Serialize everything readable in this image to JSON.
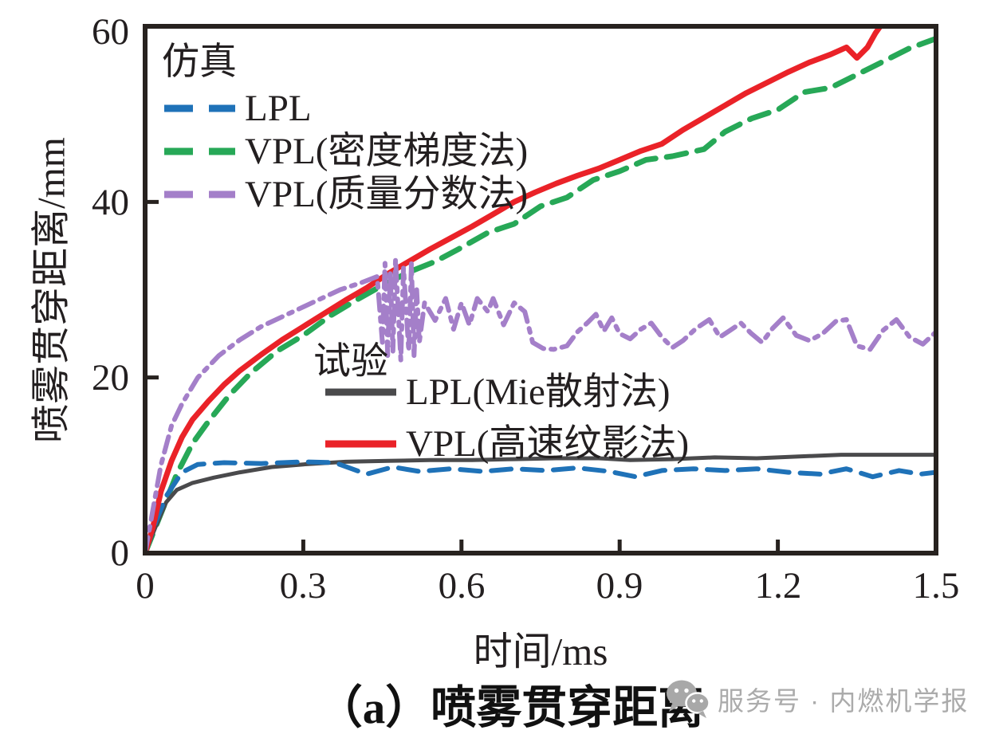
{
  "chart_data": {
    "type": "line",
    "xlabel": "时间/ms",
    "ylabel": "喷雾贯穿距离/mm",
    "xlim": [
      0,
      1.5
    ],
    "ylim": [
      0,
      60
    ],
    "grid": false,
    "x_ticks": [
      "0",
      "0.3",
      "0.6",
      "0.9",
      "1.2",
      "1.5"
    ],
    "y_ticks": [
      "0",
      "20",
      "40",
      "60"
    ],
    "legend": {
      "sim_title": "仿真",
      "exp_title": "试验",
      "sim_position": "top-left-inside",
      "exp_position": "center-inside"
    },
    "frame_color": "#27221f",
    "series": [
      {
        "key": "sim-lpl",
        "name": "LPL",
        "group": "仿真",
        "color": "#1f72b8",
        "line_style": "dashed",
        "points": [
          [
            0,
            0
          ],
          [
            0.02,
            3.5
          ],
          [
            0.04,
            6.5
          ],
          [
            0.07,
            9.2
          ],
          [
            0.1,
            10.1
          ],
          [
            0.15,
            10.3
          ],
          [
            0.22,
            10.2
          ],
          [
            0.3,
            10.4
          ],
          [
            0.36,
            10.3
          ],
          [
            0.42,
            9.0
          ],
          [
            0.47,
            9.8
          ],
          [
            0.52,
            9.3
          ],
          [
            0.58,
            9.6
          ],
          [
            0.64,
            9.3
          ],
          [
            0.7,
            9.6
          ],
          [
            0.76,
            9.4
          ],
          [
            0.82,
            9.7
          ],
          [
            0.88,
            9.3
          ],
          [
            0.93,
            8.7
          ],
          [
            0.98,
            9.4
          ],
          [
            1.04,
            9.6
          ],
          [
            1.1,
            9.4
          ],
          [
            1.16,
            9.6
          ],
          [
            1.22,
            9.2
          ],
          [
            1.28,
            9.0
          ],
          [
            1.33,
            9.6
          ],
          [
            1.38,
            8.7
          ],
          [
            1.43,
            9.4
          ],
          [
            1.47,
            9.0
          ],
          [
            1.5,
            9.2
          ]
        ]
      },
      {
        "key": "sim-vpl-density",
        "name": "VPL(密度梯度法)",
        "group": "仿真",
        "color": "#27a857",
        "line_style": "dashed",
        "points": [
          [
            0,
            0
          ],
          [
            0.03,
            4.5
          ],
          [
            0.06,
            9.0
          ],
          [
            0.09,
            12.5
          ],
          [
            0.12,
            15.0
          ],
          [
            0.16,
            18.0
          ],
          [
            0.2,
            20.5
          ],
          [
            0.25,
            23.0
          ],
          [
            0.3,
            24.8
          ],
          [
            0.35,
            27.0
          ],
          [
            0.4,
            28.8
          ],
          [
            0.45,
            30.5
          ],
          [
            0.5,
            32.0
          ],
          [
            0.55,
            33.2
          ],
          [
            0.6,
            34.8
          ],
          [
            0.65,
            36.5
          ],
          [
            0.7,
            37.5
          ],
          [
            0.75,
            39.5
          ],
          [
            0.8,
            40.5
          ],
          [
            0.85,
            42.5
          ],
          [
            0.9,
            43.5
          ],
          [
            0.95,
            44.8
          ],
          [
            1.0,
            45.2
          ],
          [
            1.06,
            46.0
          ],
          [
            1.1,
            48.0
          ],
          [
            1.15,
            49.5
          ],
          [
            1.2,
            50.5
          ],
          [
            1.25,
            52.5
          ],
          [
            1.3,
            53.0
          ],
          [
            1.35,
            54.5
          ],
          [
            1.4,
            56.0
          ],
          [
            1.45,
            57.5
          ],
          [
            1.5,
            58.6
          ]
        ]
      },
      {
        "key": "sim-vpl-mass",
        "name": "VPL(质量分数法)",
        "group": "仿真",
        "color": "#a47fc9",
        "line_style": "dash-dot",
        "points": [
          [
            0,
            0
          ],
          [
            0.015,
            5
          ],
          [
            0.03,
            10
          ],
          [
            0.05,
            14.5
          ],
          [
            0.07,
            17
          ],
          [
            0.1,
            20
          ],
          [
            0.14,
            22.5
          ],
          [
            0.18,
            24.3
          ],
          [
            0.22,
            25.8
          ],
          [
            0.27,
            27.2
          ],
          [
            0.32,
            28.6
          ],
          [
            0.37,
            30.0
          ],
          [
            0.41,
            30.8
          ],
          [
            0.44,
            31.5
          ],
          [
            0.45,
            24
          ],
          [
            0.455,
            33
          ],
          [
            0.46,
            22.5
          ],
          [
            0.465,
            32
          ],
          [
            0.47,
            23
          ],
          [
            0.475,
            33.5
          ],
          [
            0.485,
            22
          ],
          [
            0.49,
            32.5
          ],
          [
            0.5,
            23
          ],
          [
            0.505,
            33
          ],
          [
            0.51,
            22.5
          ],
          [
            0.515,
            30
          ],
          [
            0.52,
            24
          ],
          [
            0.53,
            28.5
          ],
          [
            0.55,
            26.5
          ],
          [
            0.57,
            29
          ],
          [
            0.585,
            25.5
          ],
          [
            0.6,
            28.5
          ],
          [
            0.615,
            26
          ],
          [
            0.63,
            29
          ],
          [
            0.65,
            27.5
          ],
          [
            0.66,
            29
          ],
          [
            0.68,
            26
          ],
          [
            0.7,
            28.5
          ],
          [
            0.72,
            27.5
          ],
          [
            0.735,
            24
          ],
          [
            0.755,
            23.3
          ],
          [
            0.775,
            23.2
          ],
          [
            0.8,
            23.6
          ],
          [
            0.82,
            25.2
          ],
          [
            0.84,
            26.3
          ],
          [
            0.855,
            27.2
          ],
          [
            0.87,
            25.3
          ],
          [
            0.885,
            26.8
          ],
          [
            0.9,
            25.0
          ],
          [
            0.92,
            24.4
          ],
          [
            0.94,
            25.5
          ],
          [
            0.96,
            26.2
          ],
          [
            0.98,
            24.6
          ],
          [
            1.0,
            23.4
          ],
          [
            1.02,
            24.2
          ],
          [
            1.045,
            25.6
          ],
          [
            1.07,
            26.6
          ],
          [
            1.09,
            24.6
          ],
          [
            1.11,
            25.4
          ],
          [
            1.13,
            26.2
          ],
          [
            1.15,
            25.0
          ],
          [
            1.17,
            24.0
          ],
          [
            1.19,
            25.6
          ],
          [
            1.21,
            26.8
          ],
          [
            1.235,
            24.8
          ],
          [
            1.26,
            24.2
          ],
          [
            1.285,
            25.0
          ],
          [
            1.31,
            26.4
          ],
          [
            1.33,
            26.6
          ],
          [
            1.35,
            23.6
          ],
          [
            1.375,
            23.2
          ],
          [
            1.4,
            25.4
          ],
          [
            1.425,
            26.6
          ],
          [
            1.45,
            24.6
          ],
          [
            1.475,
            23.8
          ],
          [
            1.5,
            25.2
          ]
        ]
      },
      {
        "key": "exp-lpl",
        "name": "LPL(Mie散射法)",
        "group": "试验",
        "color": "#4a4a4c",
        "line_style": "solid",
        "points": [
          [
            0,
            0
          ],
          [
            0.02,
            3.0
          ],
          [
            0.04,
            5.8
          ],
          [
            0.06,
            7.2
          ],
          [
            0.09,
            8.0
          ],
          [
            0.13,
            8.6
          ],
          [
            0.18,
            9.2
          ],
          [
            0.24,
            9.8
          ],
          [
            0.3,
            10.1
          ],
          [
            0.38,
            10.4
          ],
          [
            0.46,
            10.5
          ],
          [
            0.54,
            10.6
          ],
          [
            0.62,
            10.6
          ],
          [
            0.7,
            10.7
          ],
          [
            0.78,
            10.8
          ],
          [
            0.86,
            10.8
          ],
          [
            0.92,
            10.6
          ],
          [
            1.0,
            10.7
          ],
          [
            1.08,
            10.9
          ],
          [
            1.16,
            10.8
          ],
          [
            1.24,
            11.0
          ],
          [
            1.32,
            11.2
          ],
          [
            1.4,
            11.2
          ],
          [
            1.5,
            11.2
          ]
        ]
      },
      {
        "key": "exp-vpl",
        "name": "VPL(高速纹影法)",
        "group": "试验",
        "color": "#ea2228",
        "line_style": "solid",
        "points": [
          [
            0,
            0
          ],
          [
            0.015,
            3.0
          ],
          [
            0.03,
            7.0
          ],
          [
            0.05,
            10.5
          ],
          [
            0.07,
            13.2
          ],
          [
            0.09,
            15.2
          ],
          [
            0.12,
            17.3
          ],
          [
            0.15,
            19.2
          ],
          [
            0.18,
            20.8
          ],
          [
            0.22,
            22.6
          ],
          [
            0.26,
            24.3
          ],
          [
            0.3,
            25.8
          ],
          [
            0.34,
            27.3
          ],
          [
            0.38,
            28.8
          ],
          [
            0.42,
            30.2
          ],
          [
            0.46,
            31.8
          ],
          [
            0.5,
            33.2
          ],
          [
            0.54,
            34.6
          ],
          [
            0.58,
            35.9
          ],
          [
            0.62,
            37.2
          ],
          [
            0.66,
            38.6
          ],
          [
            0.7,
            40.0
          ],
          [
            0.74,
            41.1
          ],
          [
            0.78,
            42.1
          ],
          [
            0.82,
            43.0
          ],
          [
            0.86,
            43.8
          ],
          [
            0.9,
            44.8
          ],
          [
            0.94,
            45.8
          ],
          [
            0.98,
            46.6
          ],
          [
            1.02,
            48.2
          ],
          [
            1.06,
            49.6
          ],
          [
            1.1,
            51.0
          ],
          [
            1.14,
            52.4
          ],
          [
            1.18,
            53.6
          ],
          [
            1.22,
            54.8
          ],
          [
            1.26,
            55.9
          ],
          [
            1.3,
            56.8
          ],
          [
            1.33,
            57.6
          ],
          [
            1.35,
            56.4
          ],
          [
            1.37,
            57.6
          ],
          [
            1.385,
            59.2
          ],
          [
            1.4,
            60.5
          ]
        ]
      }
    ]
  },
  "caption": "（a）喷雾贯穿距离",
  "watermark": {
    "icon": "wechat-icon",
    "text": "服务号 · 内燃机学报"
  }
}
